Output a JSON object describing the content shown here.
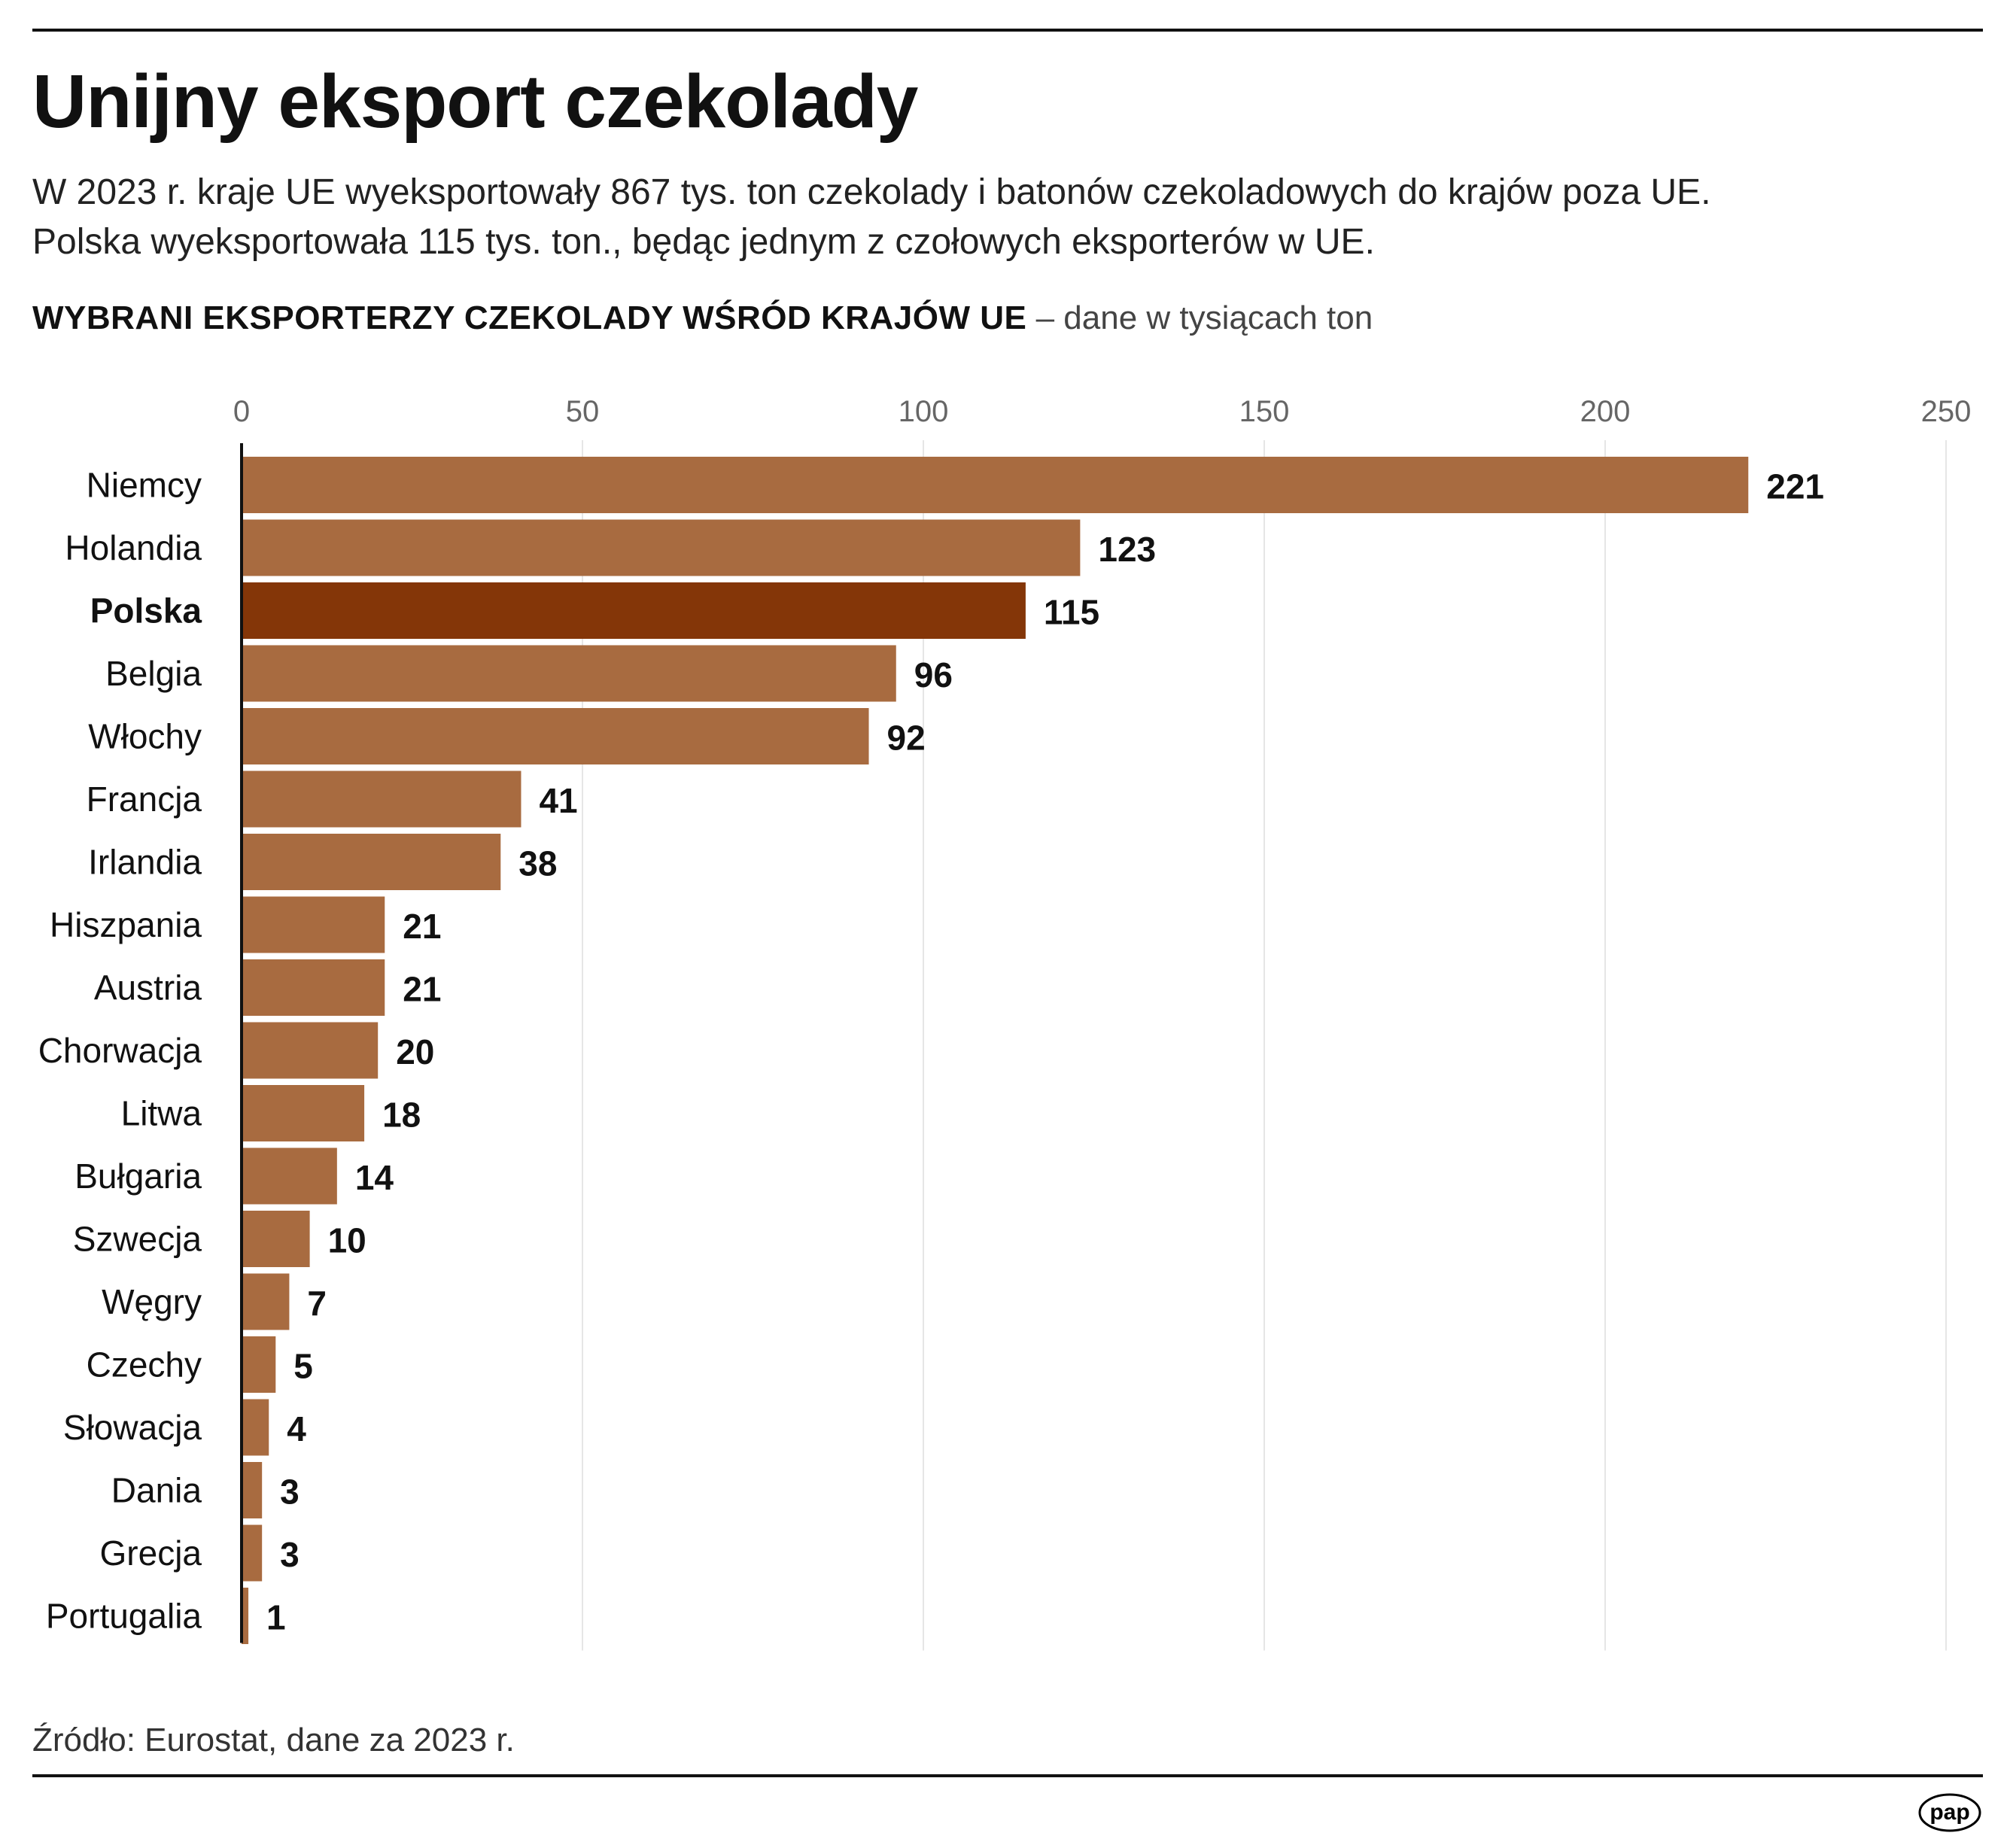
{
  "title": "Unijny eksport czekolady",
  "subtitle_lines": [
    "W 2023 r. kraje UE wyeksportowały 867 tys. ton czekolady i batonów czekoladowych do krajów poza UE.",
    "Polska wyeksportowała 115 tys. ton., będąc jednym z czołowych eksporterów w UE."
  ],
  "heading": {
    "bold": "WYBRANI EKSPORTERZY CZEKOLADY WŚRÓD KRAJÓW UE",
    "note": " – dane w tysiącach ton"
  },
  "source": "Źródło: Eurostat, dane za 2023 r.",
  "logo": "pap",
  "chart_data": {
    "type": "bar",
    "orientation": "horizontal",
    "categories": [
      "Niemcy",
      "Holandia",
      "Polska",
      "Belgia",
      "Włochy",
      "Francja",
      "Irlandia",
      "Hiszpania",
      "Austria",
      "Chorwacja",
      "Litwa",
      "Bułgaria",
      "Szwecja",
      "Węgry",
      "Czechy",
      "Słowacja",
      "Dania",
      "Grecja",
      "Portugalia"
    ],
    "values": [
      221,
      123,
      115,
      96,
      92,
      41,
      38,
      21,
      21,
      20,
      18,
      14,
      10,
      7,
      5,
      4,
      3,
      3,
      1
    ],
    "highlight": "Polska",
    "xlim": [
      0,
      250
    ],
    "xticks": [
      0,
      50,
      100,
      150,
      200,
      250
    ],
    "grid": true,
    "colors": {
      "bar": "#a86b40",
      "highlight": "#843608"
    }
  }
}
